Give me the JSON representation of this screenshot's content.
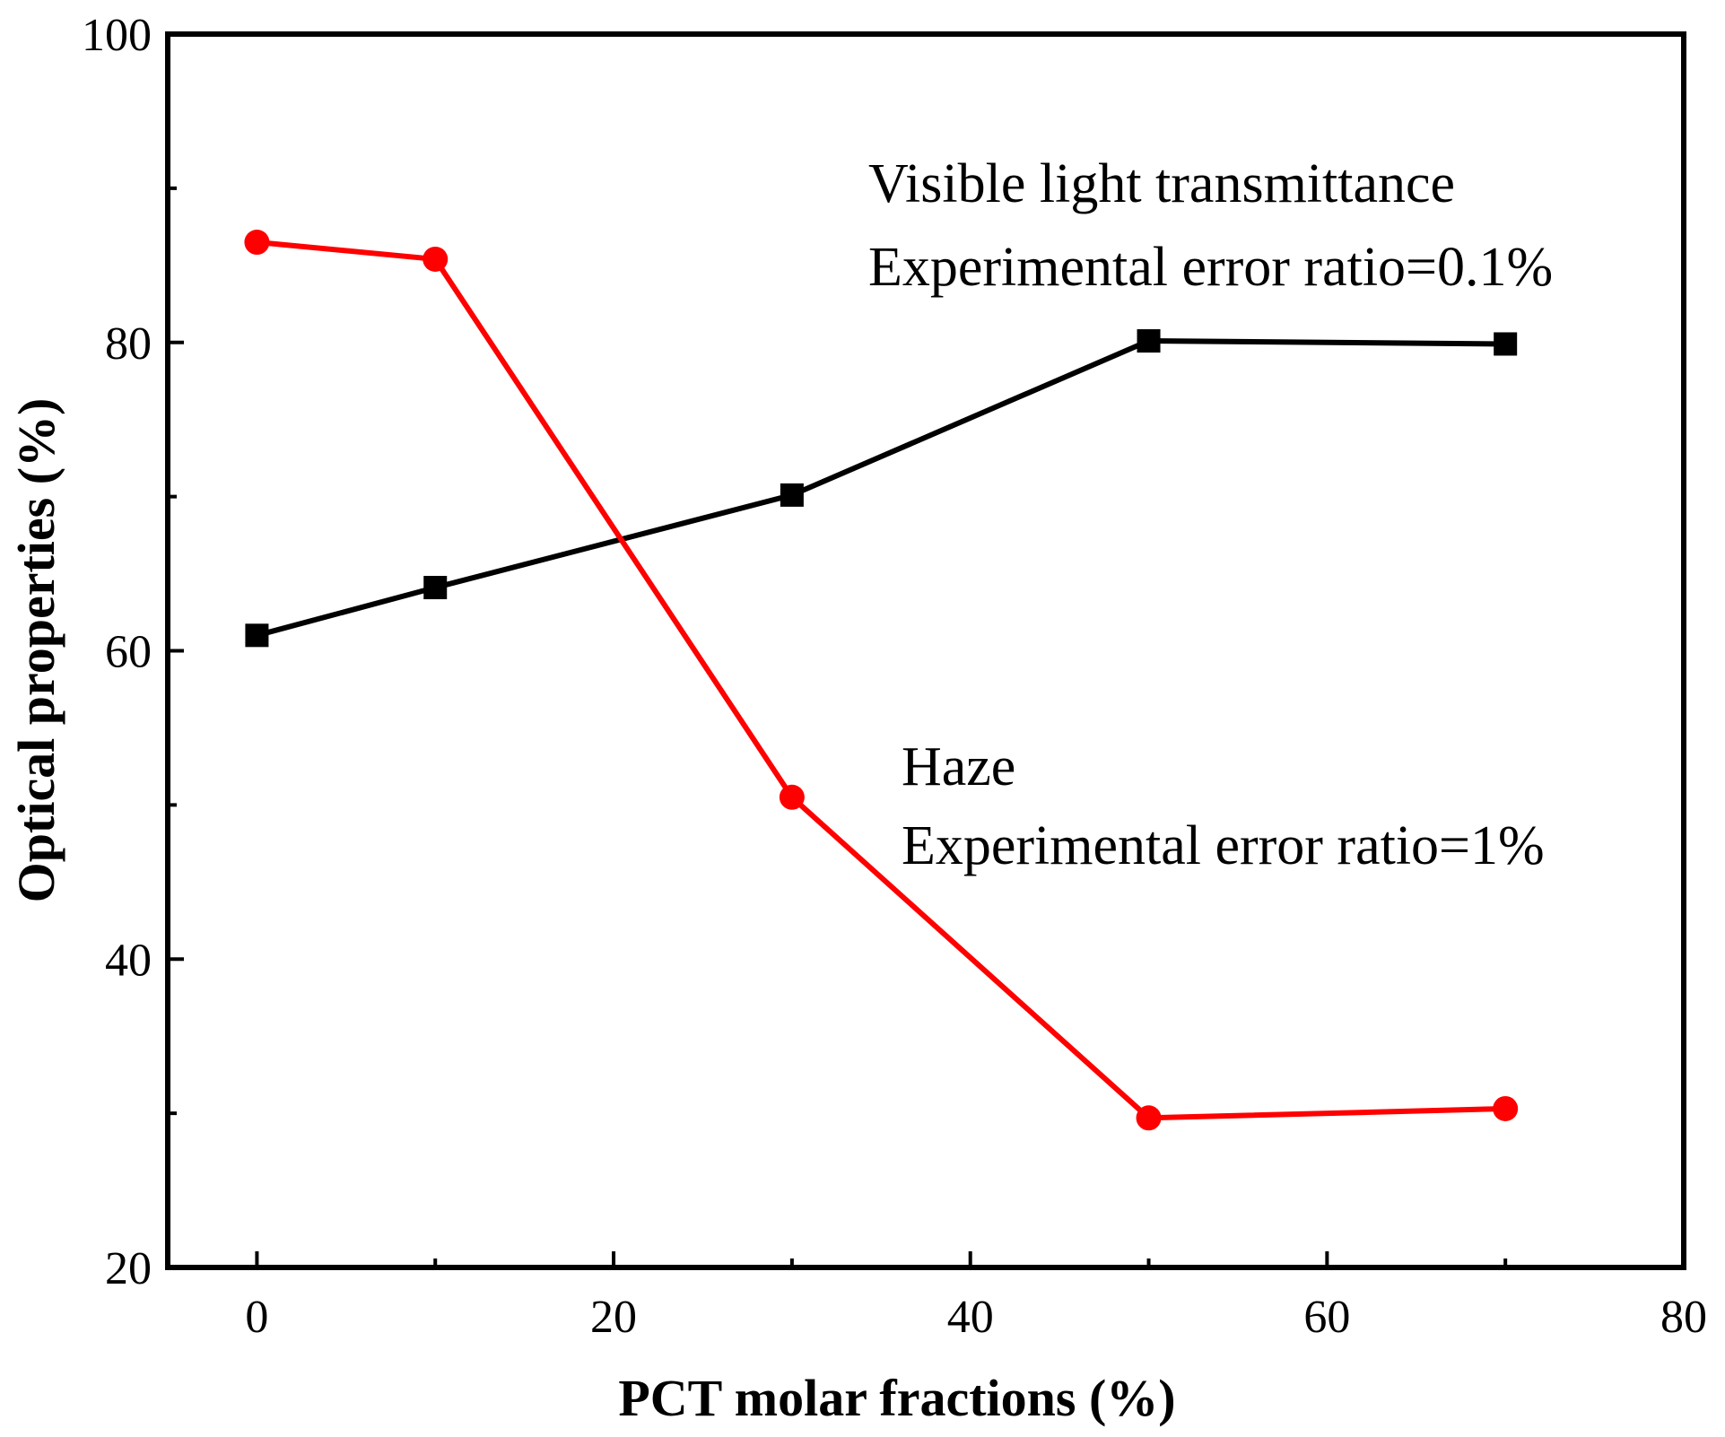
{
  "chart_data": {
    "type": "line",
    "title": "",
    "xlabel": "PCT molar fractions (%)",
    "ylabel": "Optical properties (%)",
    "xlim": [
      -5,
      80
    ],
    "ylim": [
      20,
      100
    ],
    "x_ticks": [
      0,
      20,
      40,
      60,
      80
    ],
    "x_minor_ticks": [
      10,
      30,
      50,
      70
    ],
    "y_ticks": [
      20,
      40,
      60,
      80,
      100
    ],
    "y_minor_ticks": [
      30,
      50,
      70,
      90
    ],
    "grid": false,
    "series": [
      {
        "name": "Visible light transmittance",
        "color": "#000000",
        "marker": "square",
        "x": [
          0,
          10,
          30,
          50,
          70
        ],
        "values": [
          61.0,
          64.1,
          70.1,
          80.1,
          79.9
        ]
      },
      {
        "name": "Haze",
        "color": "#ff0000",
        "marker": "circle",
        "x": [
          0,
          10,
          30,
          50,
          70
        ],
        "values": [
          86.5,
          85.4,
          50.5,
          29.7,
          30.3
        ]
      }
    ],
    "annotations": [
      {
        "line1": "Visible light transmittance",
        "line2": "Experimental error ratio=0.1%"
      },
      {
        "line1": "Haze",
        "line2": "Experimental error ratio=1%"
      }
    ]
  }
}
